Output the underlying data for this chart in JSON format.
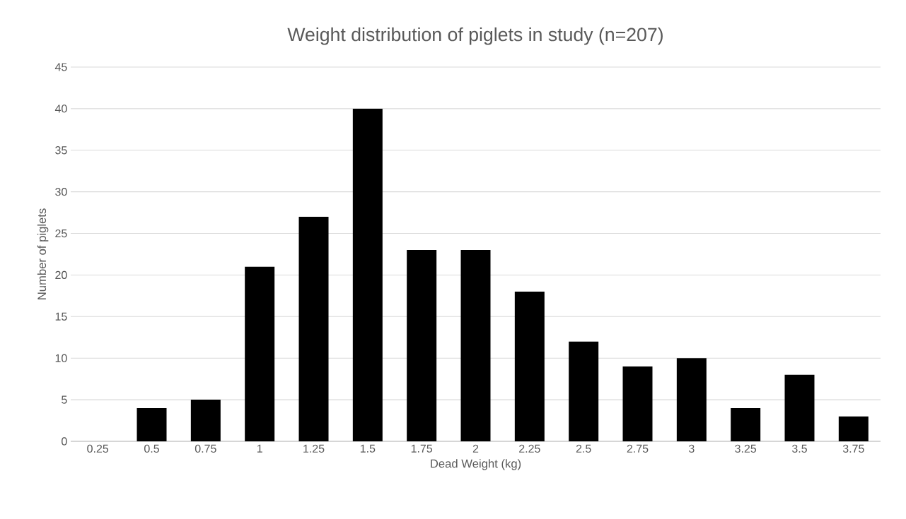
{
  "chart_data": {
    "type": "bar",
    "title": "Weight distribution of piglets in study (n=207)",
    "xlabel": "Dead Weight (kg)",
    "ylabel": "Number of piglets",
    "categories": [
      "0.25",
      "0.5",
      "0.75",
      "1",
      "1.25",
      "1.5",
      "1.75",
      "2",
      "2.25",
      "2.5",
      "2.75",
      "3",
      "3.25",
      "3.5",
      "3.75"
    ],
    "values": [
      0,
      4,
      5,
      21,
      27,
      40,
      23,
      23,
      18,
      12,
      9,
      10,
      4,
      8,
      3
    ],
    "color": "#000000",
    "ylim": [
      0,
      45
    ],
    "yticks": [
      0,
      5,
      10,
      15,
      20,
      25,
      30,
      35,
      40,
      45
    ],
    "grid": "y"
  }
}
